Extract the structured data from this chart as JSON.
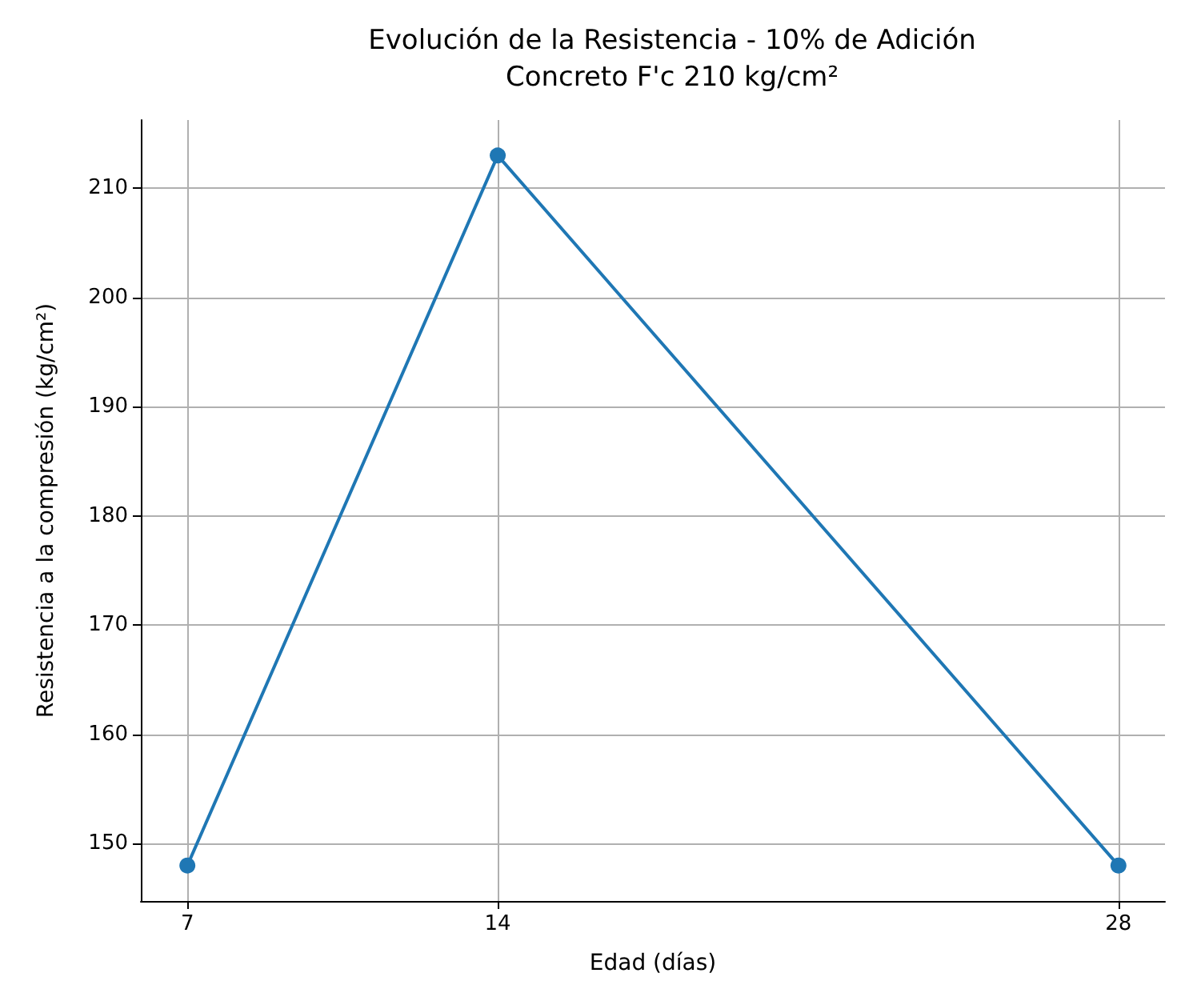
{
  "chart_data": {
    "type": "line",
    "title": "Evolución de la Resistencia - 10% de Adición",
    "subtitle": "Concreto F'c 210 kg/cm²",
    "xlabel": "Edad (días)",
    "ylabel": "Resistencia a la compresión (kg/cm²)",
    "x": [
      7,
      14,
      28
    ],
    "series": [
      {
        "color": "#1f77b4",
        "values": [
          148,
          213,
          148
        ]
      }
    ],
    "xlim": [
      5.95,
      29.05
    ],
    "xticks": [
      7,
      14,
      28
    ],
    "ylim": [
      144.75,
      216.25
    ],
    "yticks": [
      150,
      160,
      170,
      180,
      190,
      200,
      210
    ],
    "grid": true,
    "marker": "circle",
    "line_style": "solid"
  }
}
